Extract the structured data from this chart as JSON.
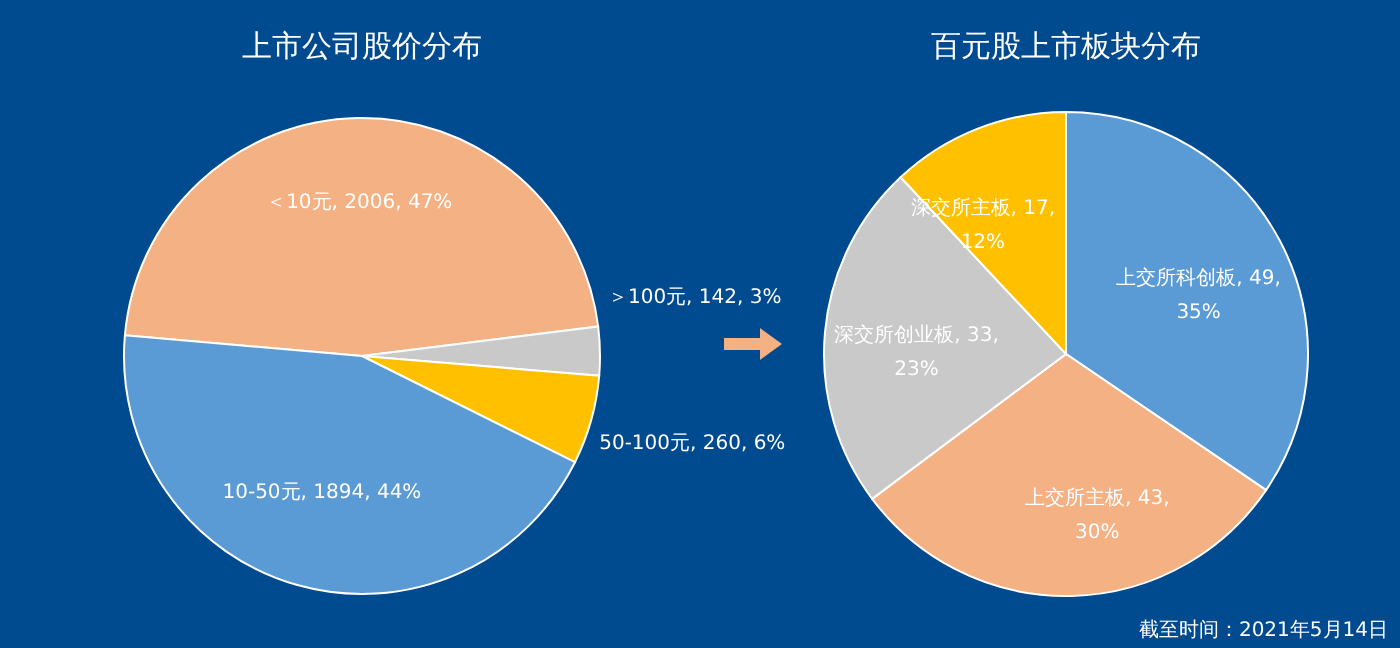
{
  "chart_data": [
    {
      "type": "pie",
      "title": "上市公司股价分布",
      "categories": [
        "＜10元",
        "＞100元",
        "50-100元",
        "10-50元"
      ],
      "values": [
        2006,
        142,
        260,
        1894
      ],
      "colors": [
        "#f4b183",
        "#c9c9c9",
        "#ffc000",
        "#5b9bd5"
      ],
      "value_labels": [
        "2006, 47%",
        "142, 3%",
        "260, 6%",
        "1894, 44%"
      ]
    },
    {
      "type": "pie",
      "title": "百元股上市板块分布",
      "categories": [
        "上交所科创板",
        "上交所主板",
        "深交所创业板",
        "深交所主板"
      ],
      "values": [
        49,
        43,
        33,
        17
      ],
      "colors": [
        "#5b9bd5",
        "#f4b183",
        "#c9c9c9",
        "#ffc000"
      ],
      "value_labels": [
        "49, 35%",
        "43, 30%",
        "33, 23%",
        "17, 12%"
      ],
      "annotations": [
        "截至时间：2021年5月14日"
      ]
    }
  ]
}
